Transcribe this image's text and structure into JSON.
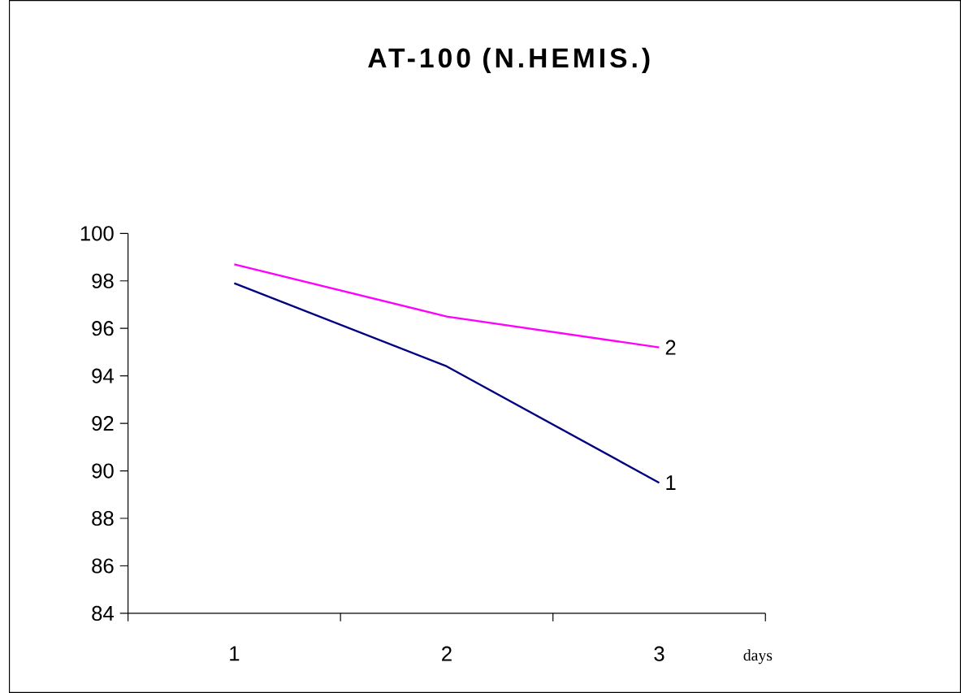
{
  "chart_data": {
    "type": "line",
    "title": "AT-100 (N.HEMIS.)",
    "xlabel": "days",
    "categories": [
      "1",
      "2",
      "3"
    ],
    "series": [
      {
        "name": "1",
        "color": "#000080",
        "values": [
          97.9,
          94.4,
          89.5
        ]
      },
      {
        "name": "2",
        "color": "#ff00ff",
        "values": [
          98.7,
          96.5,
          95.2
        ]
      }
    ],
    "ylim": [
      84,
      100
    ],
    "yticks": [
      84,
      86,
      88,
      90,
      92,
      94,
      96,
      98,
      100
    ],
    "grid": false,
    "legend": false,
    "marker": "none",
    "line_style": "solid"
  }
}
